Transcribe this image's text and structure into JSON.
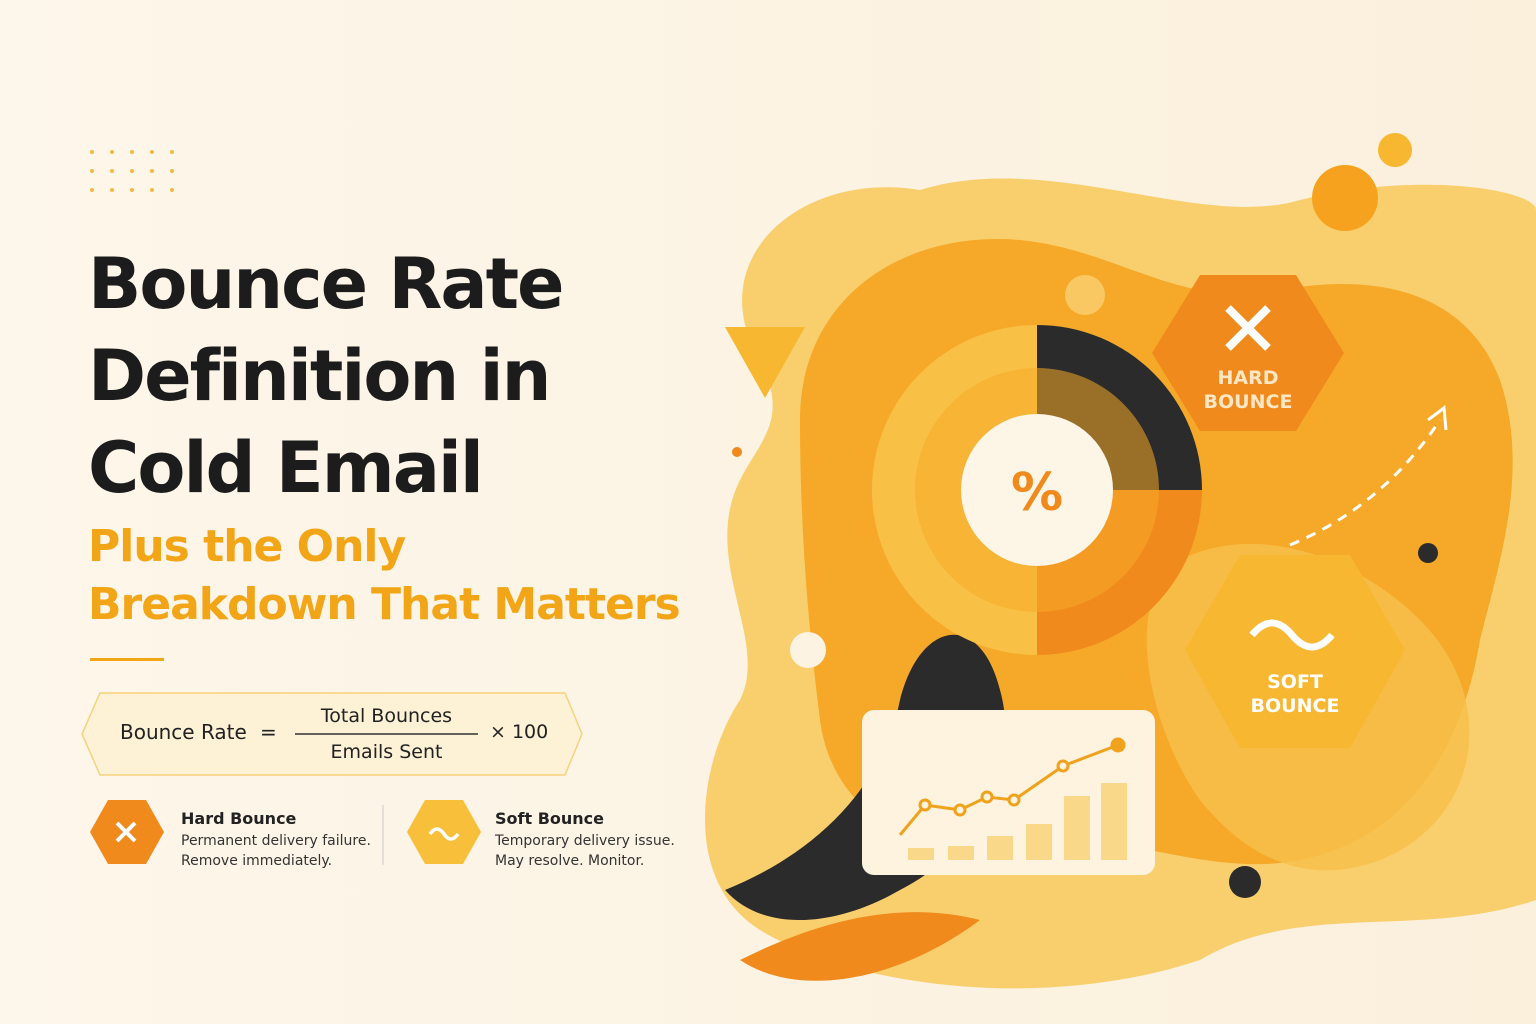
{
  "header": {
    "title_lines": [
      "Bounce Rate",
      "Definition in",
      "Cold Email"
    ],
    "subtitle_lines": [
      "Plus the Only",
      "Breakdown That Matters"
    ]
  },
  "formula": {
    "left": "Bounce Rate",
    "equals": "=",
    "numerator": "Total Bounces",
    "denominator": "Emails Sent",
    "multiplier": "× 100"
  },
  "legend": [
    {
      "title": "Hard Bounce",
      "lines": [
        "Permanent delivery failure.",
        "Remove immediately."
      ]
    },
    {
      "title": "Soft Bounce",
      "lines": [
        "Temporary delivery issue.",
        "May resolve. Monitor."
      ]
    }
  ],
  "illustration": {
    "percent": "%",
    "hard_badge": [
      "HARD",
      "BOUNCE"
    ],
    "soft_badge": [
      "SOFT",
      "BOUNCE"
    ]
  }
}
